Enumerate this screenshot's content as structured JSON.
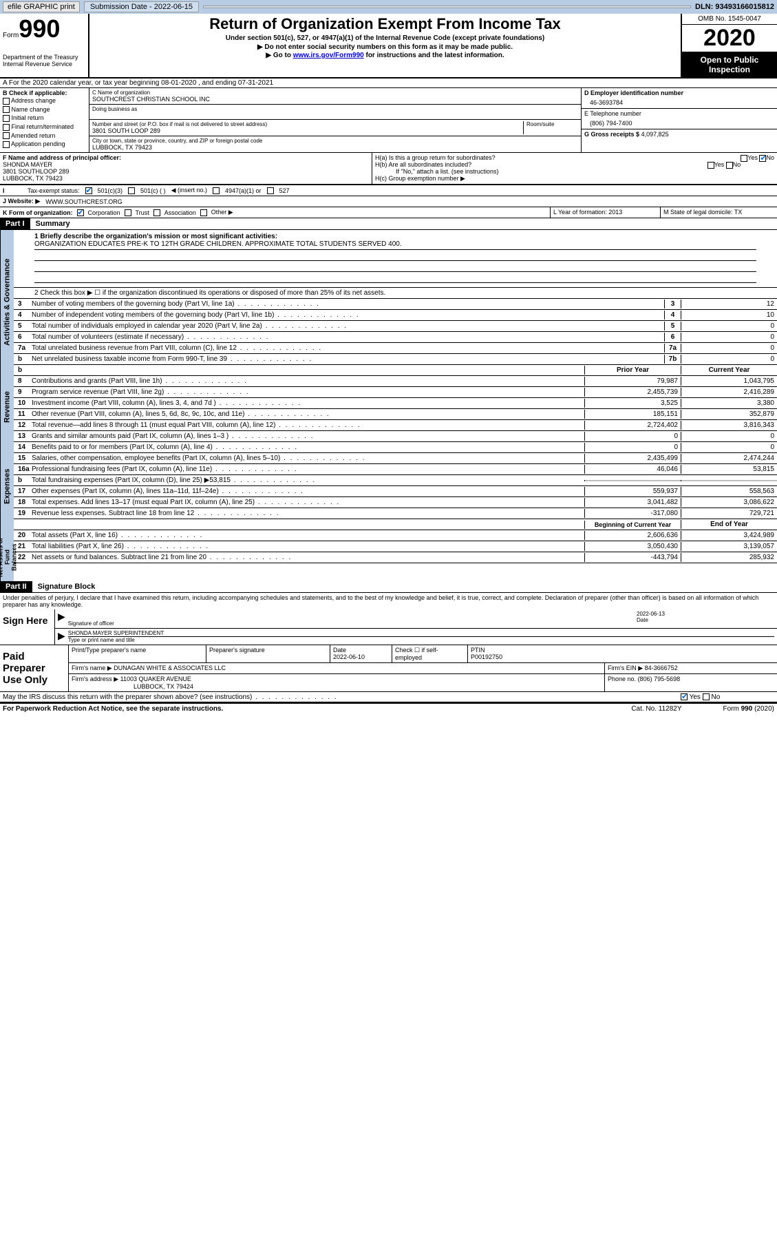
{
  "topbar": {
    "efile": "efile GRAPHIC print",
    "subdate_lbl": "Submission Date - 2022-06-15",
    "dln": "DLN: 93493166015812"
  },
  "header": {
    "form": "Form",
    "num": "990",
    "dept": "Department of the Treasury\nInternal Revenue Service",
    "title": "Return of Organization Exempt From Income Tax",
    "sub": "Under section 501(c), 527, or 4947(a)(1) of the Internal Revenue Code (except private foundations)",
    "arrow1": "▶ Do not enter social security numbers on this form as it may be made public.",
    "arrow2_pre": "▶ Go to ",
    "arrow2_link": "www.irs.gov/Form990",
    "arrow2_post": " for instructions and the latest information.",
    "omb": "OMB No. 1545-0047",
    "year": "2020",
    "open": "Open to Public Inspection"
  },
  "lineA": "A  For the 2020 calendar year, or tax year beginning 08-01-2020    , and ending 07-31-2021",
  "colB": {
    "hdr": "B Check if applicable:",
    "items": [
      "Address change",
      "Name change",
      "Initial return",
      "Final return/terminated",
      "Amended return",
      "Application pending"
    ]
  },
  "colC": {
    "name_lbl": "C Name of organization",
    "name": "SOUTHCREST CHRISTIAN SCHOOL INC",
    "dba_lbl": "Doing business as",
    "addr_lbl": "Number and street (or P.O. box if mail is not delivered to street address)",
    "room_lbl": "Room/suite",
    "addr": "3801 SOUTH LOOP 289",
    "city_lbl": "City or town, state or province, country, and ZIP or foreign postal code",
    "city": "LUBBOCK, TX  79423"
  },
  "colD": {
    "ein_lbl": "D Employer identification number",
    "ein": "46-3693784",
    "tel_lbl": "E Telephone number",
    "tel": "(806) 794-7400",
    "gross_lbl": "G Gross receipts $",
    "gross": "4,097,825"
  },
  "rowF": {
    "lbl": "F Name and address of principal officer:",
    "name": "SHONDA MAYER",
    "addr1": "3801 SOUTHLOOP 289",
    "addr2": "LUBBOCK, TX  79423"
  },
  "rowH": {
    "ha": "H(a)  Is this a group return for subordinates?",
    "hb": "H(b)  Are all subordinates included?",
    "hb_note": "If \"No,\" attach a list. (see instructions)",
    "hc": "H(c)  Group exemption number ▶",
    "yes": "Yes",
    "no": "No"
  },
  "taxStatus": {
    "lbl": "Tax-exempt status:",
    "c501c3": "501(c)(3)",
    "c501c": "501(c) (   )",
    "insert": "◀ (insert no.)",
    "c4947": "4947(a)(1) or",
    "c527": "527"
  },
  "rowJ": {
    "lbl": "J  Website: ▶",
    "val": "WWW.SOUTHCREST.ORG"
  },
  "rowK": {
    "lbl": "K Form of organization:",
    "corp": "Corporation",
    "trust": "Trust",
    "assoc": "Association",
    "other": "Other ▶",
    "L": "L Year of formation: 2013",
    "M": "M State of legal domicile: TX"
  },
  "part1": {
    "hdr": "Part I",
    "title": "Summary",
    "q1": "1  Briefly describe the organization's mission or most significant activities:",
    "mission": "ORGANIZATION EDUCATES PRE-K TO 12TH GRADE CHILDREN. APPROXIMATE TOTAL STUDENTS SERVED 400.",
    "q2": "2    Check this box ▶ ☐  if the organization discontinued its operations or disposed of more than 25% of its net assets.",
    "rows_gov": [
      {
        "n": "3",
        "t": "Number of voting members of the governing body (Part VI, line 1a)",
        "box": "3",
        "v": "12"
      },
      {
        "n": "4",
        "t": "Number of independent voting members of the governing body (Part VI, line 1b)",
        "box": "4",
        "v": "10"
      },
      {
        "n": "5",
        "t": "Total number of individuals employed in calendar year 2020 (Part V, line 2a)",
        "box": "5",
        "v": "0"
      },
      {
        "n": "6",
        "t": "Total number of volunteers (estimate if necessary)",
        "box": "6",
        "v": "0"
      },
      {
        "n": "7a",
        "t": "Total unrelated business revenue from Part VIII, column (C), line 12",
        "box": "7a",
        "v": "0"
      },
      {
        "n": "b",
        "t": "Net unrelated business taxable income from Form 990-T, line 39",
        "box": "7b",
        "v": "0"
      }
    ],
    "hdr_prior": "Prior Year",
    "hdr_curr": "Current Year",
    "rows_rev": [
      {
        "n": "8",
        "t": "Contributions and grants (Part VIII, line 1h)",
        "p": "79,987",
        "c": "1,043,795"
      },
      {
        "n": "9",
        "t": "Program service revenue (Part VIII, line 2g)",
        "p": "2,455,739",
        "c": "2,416,289"
      },
      {
        "n": "10",
        "t": "Investment income (Part VIII, column (A), lines 3, 4, and 7d )",
        "p": "3,525",
        "c": "3,380"
      },
      {
        "n": "11",
        "t": "Other revenue (Part VIII, column (A), lines 5, 6d, 8c, 9c, 10c, and 11e)",
        "p": "185,151",
        "c": "352,879"
      },
      {
        "n": "12",
        "t": "Total revenue—add lines 8 through 11 (must equal Part VIII, column (A), line 12)",
        "p": "2,724,402",
        "c": "3,816,343"
      }
    ],
    "rows_exp": [
      {
        "n": "13",
        "t": "Grants and similar amounts paid (Part IX, column (A), lines 1–3 )",
        "p": "0",
        "c": "0"
      },
      {
        "n": "14",
        "t": "Benefits paid to or for members (Part IX, column (A), line 4)",
        "p": "0",
        "c": "0"
      },
      {
        "n": "15",
        "t": "Salaries, other compensation, employee benefits (Part IX, column (A), lines 5–10)",
        "p": "2,435,499",
        "c": "2,474,244"
      },
      {
        "n": "16a",
        "t": "Professional fundraising fees (Part IX, column (A), line 11e)",
        "p": "46,046",
        "c": "53,815"
      },
      {
        "n": "b",
        "t": "Total fundraising expenses (Part IX, column (D), line 25) ▶53,815",
        "p": "",
        "c": "",
        "shade": true
      },
      {
        "n": "17",
        "t": "Other expenses (Part IX, column (A), lines 11a–11d, 11f–24e)",
        "p": "559,937",
        "c": "558,563"
      },
      {
        "n": "18",
        "t": "Total expenses. Add lines 13–17 (must equal Part IX, column (A), line 25)",
        "p": "3,041,482",
        "c": "3,086,622"
      },
      {
        "n": "19",
        "t": "Revenue less expenses. Subtract line 18 from line 12",
        "p": "-317,080",
        "c": "729,721"
      }
    ],
    "hdr_begin": "Beginning of Current Year",
    "hdr_end": "End of Year",
    "rows_net": [
      {
        "n": "20",
        "t": "Total assets (Part X, line 16)",
        "p": "2,606,636",
        "c": "3,424,989"
      },
      {
        "n": "21",
        "t": "Total liabilities (Part X, line 26)",
        "p": "3,050,430",
        "c": "3,139,057"
      },
      {
        "n": "22",
        "t": "Net assets or fund balances. Subtract line 21 from line 20",
        "p": "-443,794",
        "c": "285,932"
      }
    ]
  },
  "vtabs": {
    "gov": "Activities & Governance",
    "rev": "Revenue",
    "exp": "Expenses",
    "net": "Net Assets or Fund Balances"
  },
  "part2": {
    "hdr": "Part II",
    "title": "Signature Block",
    "declare": "Under penalties of perjury, I declare that I have examined this return, including accompanying schedules and statements, and to the best of my knowledge and belief, it is true, correct, and complete. Declaration of preparer (other than officer) is based on all information of which preparer has any knowledge.",
    "sign_here": "Sign Here",
    "sig_officer": "Signature of officer",
    "sig_date": "2022-06-13",
    "date_lbl": "Date",
    "typed": "SHONDA MAYER  SUPERINTENDENT",
    "typed_lbl": "Type or print name and title",
    "paid": "Paid Preparer Use Only",
    "prep_name_lbl": "Print/Type preparer's name",
    "prep_sig_lbl": "Preparer's signature",
    "prep_date": "Date\n2022-06-10",
    "prep_check": "Check ☐ if self-employed",
    "ptin_lbl": "PTIN",
    "ptin": "P00192750",
    "firm_name_lbl": "Firm's name    ▶",
    "firm_name": "DUNAGAN WHITE & ASSOCIATES LLC",
    "firm_ein_lbl": "Firm's EIN ▶",
    "firm_ein": "84-3666752",
    "firm_addr_lbl": "Firm's address ▶",
    "firm_addr": "11003 QUAKER AVENUE",
    "firm_city": "LUBBOCK, TX  79424",
    "firm_phone_lbl": "Phone no.",
    "firm_phone": "(806) 795-5698",
    "discuss": "May the IRS discuss this return with the preparer shown above? (see instructions)",
    "yes": "Yes",
    "no": "No"
  },
  "footer": {
    "pra": "For Paperwork Reduction Act Notice, see the separate instructions.",
    "cat": "Cat. No. 11282Y",
    "form": "Form 990 (2020)"
  }
}
